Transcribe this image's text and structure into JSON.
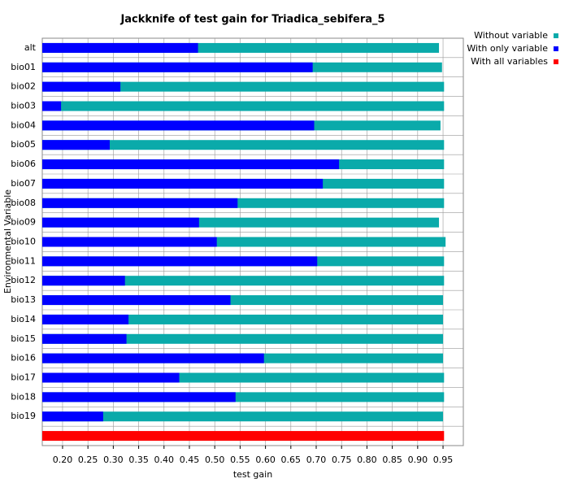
{
  "chart_data": {
    "type": "barh",
    "title": "Jackknife of test gain for Triadica_sebifera_5",
    "xlabel": "test gain",
    "ylabel": "Environmental Variable",
    "categories": [
      "alt",
      "bio01",
      "bio02",
      "bio03",
      "bio04",
      "bio05",
      "bio06",
      "bio07",
      "bio08",
      "bio09",
      "bio10",
      "bio11",
      "bio12",
      "bio13",
      "bio14",
      "bio15",
      "bio16",
      "bio17",
      "bio18",
      "bio19",
      null
    ],
    "series": [
      {
        "name": "Without variable",
        "color": "#0aaaaa",
        "values": [
          0.942,
          0.948,
          0.952,
          0.952,
          0.945,
          0.952,
          0.952,
          0.952,
          0.952,
          0.942,
          0.955,
          0.952,
          0.952,
          0.95,
          0.95,
          0.95,
          0.95,
          0.952,
          0.952,
          0.95,
          null
        ]
      },
      {
        "name": "With only variable",
        "color": "#0000ff",
        "values": [
          0.467,
          0.693,
          0.314,
          0.197,
          0.696,
          0.293,
          0.745,
          0.713,
          0.545,
          0.469,
          0.504,
          0.702,
          0.323,
          0.531,
          0.33,
          0.326,
          0.597,
          0.43,
          0.541,
          0.28,
          null
        ]
      },
      {
        "name": "With all variables",
        "color": "#ff0000",
        "values": [
          null,
          null,
          null,
          null,
          null,
          null,
          null,
          null,
          null,
          null,
          null,
          null,
          null,
          null,
          null,
          null,
          null,
          null,
          null,
          null,
          0.952
        ]
      }
    ],
    "xlim": [
      0.16,
      0.99
    ],
    "xticks": [
      {
        "value": 0.2,
        "label": "0.20"
      },
      0.25,
      {
        "value": 0.3,
        "label": "0.30"
      },
      0.35,
      {
        "value": 0.4,
        "label": "0.40"
      },
      0.45,
      {
        "value": 0.5,
        "label": "0.50"
      },
      0.55,
      {
        "value": 0.6,
        "label": "0.60"
      },
      0.65,
      {
        "value": 0.7,
        "label": "0.70"
      },
      0.75,
      {
        "value": 0.8,
        "label": "0.80"
      },
      0.85,
      {
        "value": 0.9,
        "label": "0.90"
      },
      0.95
    ],
    "grid": true,
    "legend": "upper right"
  }
}
